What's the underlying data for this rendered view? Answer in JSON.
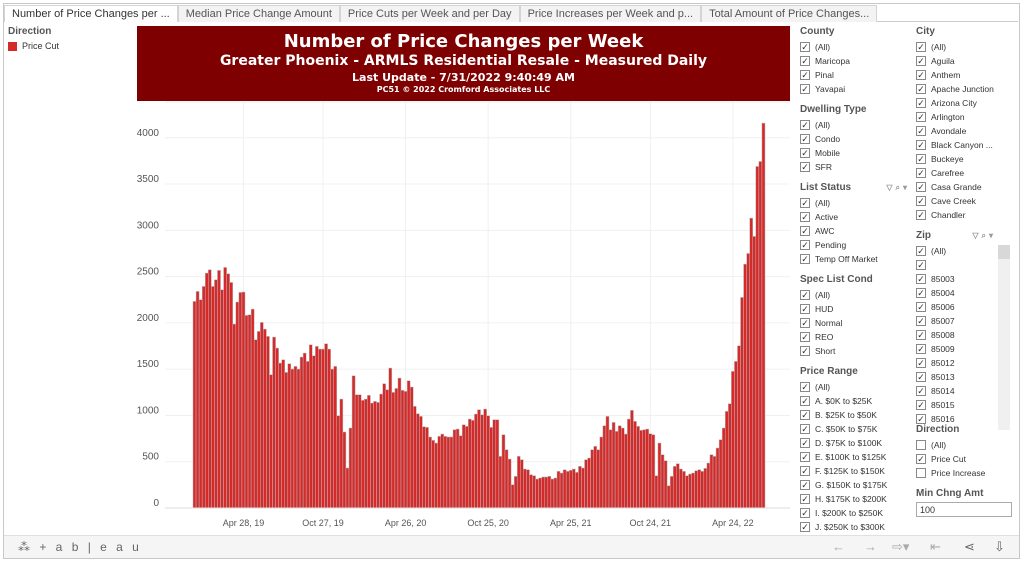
{
  "tabs": [
    "Number of Price Changes per ...",
    "Median Price Change Amount",
    "Price Cuts per Week and per Day",
    "Price Increases per Week and p...",
    "Total Amount of Price Changes..."
  ],
  "legend": {
    "title": "Direction",
    "items": [
      {
        "label": "Price Cut",
        "color": "#d42a2a"
      }
    ]
  },
  "header": {
    "title": "Number of Price Changes per Week",
    "subtitle": "Greater Phoenix - ARMLS Residential Resale - Measured Daily",
    "update": "Last Update - 7/31/2022 9:40:49 AM",
    "copyright": "PC51 © 2022 Cromford Associates LLC"
  },
  "filters": {
    "county": {
      "title": "County",
      "items": [
        {
          "label": "(All)",
          "checked": true
        },
        {
          "label": "Maricopa",
          "checked": true
        },
        {
          "label": "Pinal",
          "checked": true
        },
        {
          "label": "Yavapai",
          "checked": true
        }
      ]
    },
    "dwelling": {
      "title": "Dwelling Type",
      "items": [
        {
          "label": "(All)",
          "checked": true
        },
        {
          "label": "Condo",
          "checked": true
        },
        {
          "label": "Mobile",
          "checked": true
        },
        {
          "label": "SFR",
          "checked": true
        }
      ]
    },
    "list_status": {
      "title": "List Status",
      "items": [
        {
          "label": "(All)",
          "checked": true
        },
        {
          "label": "Active",
          "checked": true
        },
        {
          "label": "AWC",
          "checked": true
        },
        {
          "label": "Pending",
          "checked": true
        },
        {
          "label": "Temp Off Market",
          "checked": true
        }
      ]
    },
    "spec": {
      "title": "Spec List Cond",
      "items": [
        {
          "label": "(All)",
          "checked": true
        },
        {
          "label": "HUD",
          "checked": true
        },
        {
          "label": "Normal",
          "checked": true
        },
        {
          "label": "REO",
          "checked": true
        },
        {
          "label": "Short",
          "checked": true
        }
      ]
    },
    "price": {
      "title": "Price Range",
      "items": [
        {
          "label": "(All)",
          "checked": true
        },
        {
          "label": "A. $0K to $25K",
          "checked": true
        },
        {
          "label": "B. $25K to $50K",
          "checked": true
        },
        {
          "label": "C. $50K to $75K",
          "checked": true
        },
        {
          "label": "D. $75K to $100K",
          "checked": true
        },
        {
          "label": "E. $100K to $125K",
          "checked": true
        },
        {
          "label": "F. $125K to $150K",
          "checked": true
        },
        {
          "label": "G. $150K to $175K",
          "checked": true
        },
        {
          "label": "H. $175K to $200K",
          "checked": true
        },
        {
          "label": "I. $200K to $250K",
          "checked": true
        },
        {
          "label": "J. $250K to $300K",
          "checked": true
        }
      ]
    },
    "city": {
      "title": "City",
      "items": [
        {
          "label": "(All)",
          "checked": true
        },
        {
          "label": "Aguila",
          "checked": true
        },
        {
          "label": "Anthem",
          "checked": true
        },
        {
          "label": "Apache Junction",
          "checked": true
        },
        {
          "label": "Arizona City",
          "checked": true
        },
        {
          "label": "Arlington",
          "checked": true
        },
        {
          "label": "Avondale",
          "checked": true
        },
        {
          "label": "Black Canyon ...",
          "checked": true
        },
        {
          "label": "Buckeye",
          "checked": true
        },
        {
          "label": "Carefree",
          "checked": true
        },
        {
          "label": "Casa Grande",
          "checked": true
        },
        {
          "label": "Cave Creek",
          "checked": true
        },
        {
          "label": "Chandler",
          "checked": true
        }
      ]
    },
    "zip": {
      "title": "Zip",
      "items": [
        {
          "label": "(All)",
          "checked": true
        },
        {
          "label": "",
          "checked": true
        },
        {
          "label": "85003",
          "checked": true
        },
        {
          "label": "85004",
          "checked": true
        },
        {
          "label": "85006",
          "checked": true
        },
        {
          "label": "85007",
          "checked": true
        },
        {
          "label": "85008",
          "checked": true
        },
        {
          "label": "85009",
          "checked": true
        },
        {
          "label": "85012",
          "checked": true
        },
        {
          "label": "85013",
          "checked": true
        },
        {
          "label": "85014",
          "checked": true
        },
        {
          "label": "85015",
          "checked": true
        },
        {
          "label": "85016",
          "checked": true
        }
      ]
    },
    "direction": {
      "title": "Direction",
      "items": [
        {
          "label": "(All)",
          "checked": false
        },
        {
          "label": "Price Cut",
          "checked": true
        },
        {
          "label": "Price Increase",
          "checked": false
        }
      ]
    },
    "min_chng": {
      "title": "Min Chng Amt",
      "value": "100"
    }
  },
  "footer": {
    "logo": "+ a b | e a u"
  },
  "chart_data": {
    "type": "bar",
    "title": "Number of Price Changes per Week",
    "xlabel": "",
    "ylabel": "",
    "ylim": [
      0,
      4300
    ],
    "yticks": [
      0,
      500,
      1000,
      1500,
      2000,
      2500,
      3000,
      3500,
      4000
    ],
    "xticks": [
      {
        "index": 16,
        "label": "Apr 28, 19"
      },
      {
        "index": 42,
        "label": "Oct 27, 19"
      },
      {
        "index": 69,
        "label": "Apr 26, 20"
      },
      {
        "index": 96,
        "label": "Oct 25, 20"
      },
      {
        "index": 123,
        "label": "Apr 25, 21"
      },
      {
        "index": 149,
        "label": "Oct 24, 21"
      },
      {
        "index": 176,
        "label": "Apr 24, 22"
      }
    ],
    "series": [
      {
        "name": "Price Cut",
        "color": "#d42a2a",
        "values": [
          2232,
          2340,
          2250,
          2394,
          2538,
          2574,
          2394,
          2466,
          2567,
          2358,
          2599,
          2531,
          2437,
          1987,
          2225,
          2329,
          2333,
          2081,
          2088,
          2149,
          1818,
          1908,
          2005,
          1933,
          1854,
          1440,
          1847,
          1728,
          1566,
          1602,
          1465,
          1559,
          1501,
          1530,
          1501,
          1631,
          1674,
          1584,
          1764,
          1645,
          1746,
          1717,
          1717,
          1775,
          1717,
          1501,
          1530,
          997,
          1177,
          821,
          432,
          864,
          1429,
          1224,
          1224,
          1163,
          1177,
          1217,
          1134,
          1152,
          1141,
          1231,
          1343,
          1278,
          1512,
          1249,
          1292,
          1404,
          1271,
          1260,
          1375,
          1307,
          1098,
          1019,
          990,
          878,
          871,
          767,
          731,
          702,
          774,
          799,
          774,
          767,
          767,
          846,
          853,
          781,
          900,
          882,
          961,
          947,
          1015,
          1062,
          1008,
          1069,
          997,
          871,
          954,
          954,
          558,
          792,
          630,
          529,
          252,
          342,
          558,
          522,
          421,
          414,
          360,
          349,
          313,
          324,
          335,
          335,
          342,
          313,
          324,
          396,
          378,
          414,
          396,
          407,
          421,
          385,
          450,
          432,
          522,
          540,
          630,
          666,
          630,
          767,
          889,
          990,
          846,
          925,
          828,
          889,
          864,
          799,
          961,
          1055,
          936,
          882,
          839,
          846,
          853,
          803,
          792,
          349,
          702,
          576,
          511,
          241,
          342,
          450,
          479,
          421,
          396,
          349,
          367,
          378,
          403,
          414,
          396,
          428,
          486,
          576,
          558,
          648,
          738,
          864,
          1044,
          1127,
          1476,
          1584,
          1753,
          2275,
          2635,
          2750,
          3132,
          2934,
          3690,
          3744,
          4158
        ]
      }
    ]
  }
}
